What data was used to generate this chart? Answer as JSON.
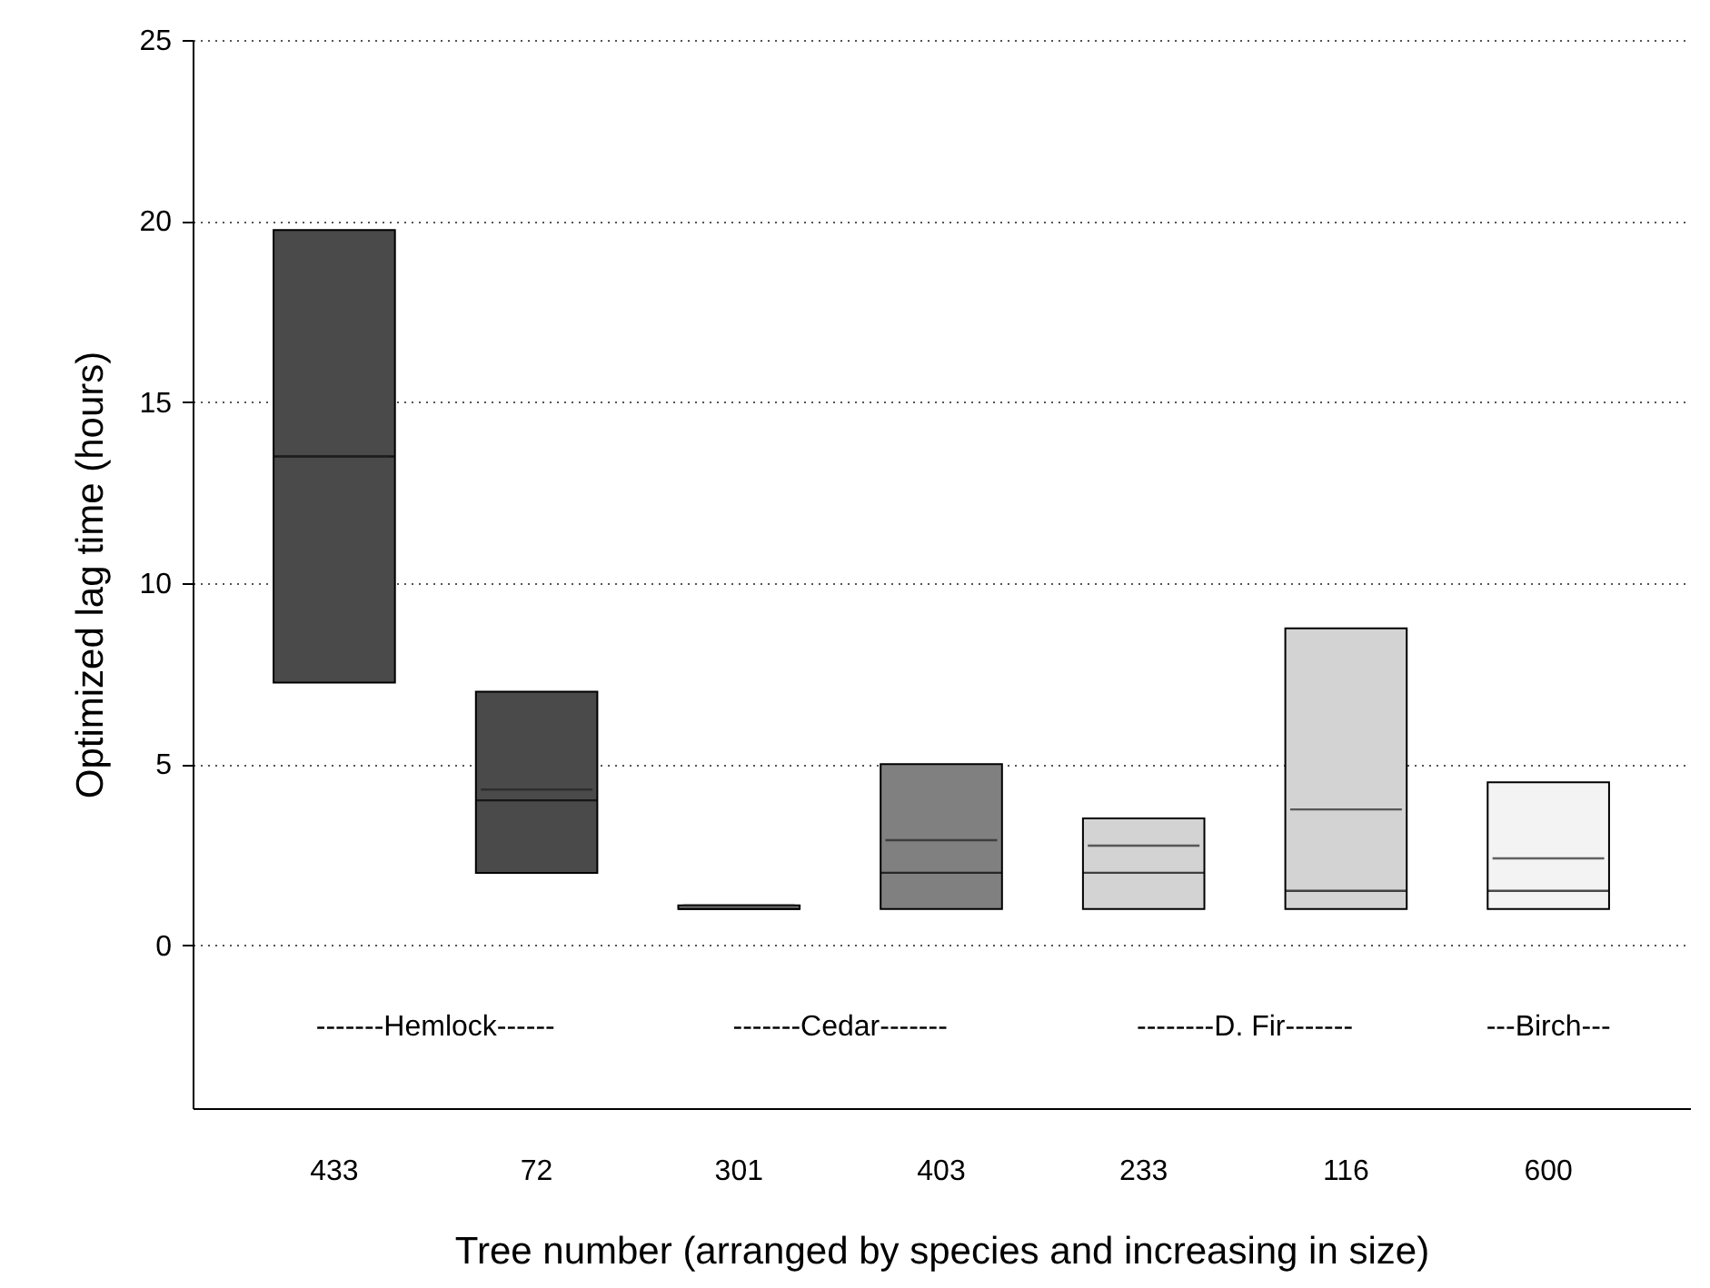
{
  "chart_data": {
    "type": "box",
    "xlabel": "Tree number (arranged by species and increasing in size)",
    "ylabel": "Optimized lag time (hours)",
    "categories": [
      "433",
      "72",
      "301",
      "403",
      "233",
      "116",
      "600"
    ],
    "boxes": [
      {
        "low": 7.25,
        "q1": 7.25,
        "median": 13.5,
        "q3": 19.75,
        "high": 19.75,
        "mean": 13.5
      },
      {
        "low": 2.0,
        "q1": 2.0,
        "median": 4.0,
        "q3": 7.0,
        "high": 7.0,
        "mean": 4.3
      },
      {
        "low": 1.0,
        "q1": 1.0,
        "median": 1.0,
        "q3": 1.1,
        "high": 1.1,
        "mean": 1.1
      },
      {
        "low": 1.0,
        "q1": 1.0,
        "median": 2.0,
        "q3": 5.0,
        "high": 5.0,
        "mean": 2.9
      },
      {
        "low": 1.0,
        "q1": 1.0,
        "median": 2.0,
        "q3": 3.5,
        "high": 3.5,
        "mean": 2.75
      },
      {
        "low": 1.0,
        "q1": 1.0,
        "median": 1.5,
        "q3": 8.75,
        "high": 8.75,
        "mean": 3.75
      },
      {
        "low": 1.0,
        "q1": 1.0,
        "median": 1.5,
        "q3": 4.5,
        "high": 4.5,
        "mean": 2.4
      }
    ],
    "colors": [
      "#4a4a4a",
      "#4a4a4a",
      "#808080",
      "#808080",
      "#d3d3d3",
      "#d3d3d3",
      "#f3f3f3"
    ],
    "ylim": [
      -4.5,
      25
    ],
    "yticks": [
      0,
      5,
      10,
      15,
      20,
      25
    ],
    "grid": "y",
    "annotations": [
      "-------Hemlock------",
      "-------Cedar-------",
      "--------D. Fir-------",
      "---Birch---"
    ]
  }
}
